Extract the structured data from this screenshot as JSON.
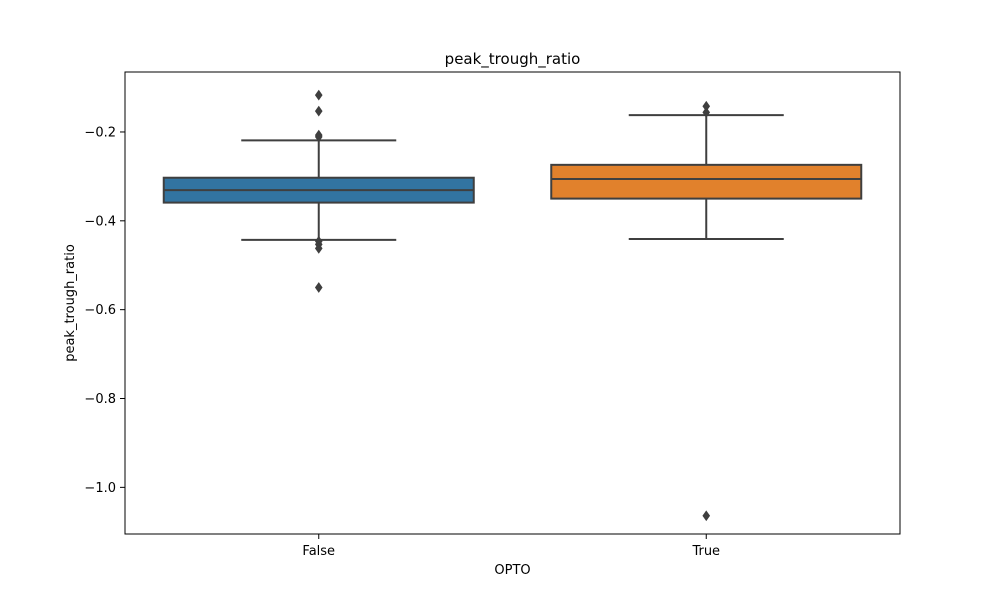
{
  "chart_data": {
    "type": "box",
    "title": "peak_trough_ratio",
    "xlabel": "OPTO",
    "ylabel": "peak_trough_ratio",
    "ylim": [
      -1.105,
      -0.065
    ],
    "yticks": [
      -0.2,
      -0.4,
      -0.6,
      -0.8,
      -1.0
    ],
    "ytick_labels": [
      "−0.2",
      "−0.4",
      "−0.6",
      "−0.8",
      "−1.0"
    ],
    "grid": false,
    "legend": "none",
    "categories": [
      "False",
      "True"
    ],
    "boxes": [
      {
        "category": "False",
        "color": "#3274a1",
        "whisker_low": -0.443,
        "q1": -0.359,
        "median": -0.331,
        "q3": -0.303,
        "whisker_high": -0.219,
        "outliers": [
          -0.117,
          -0.153,
          -0.207,
          -0.211,
          -0.446,
          -0.453,
          -0.462,
          -0.55
        ]
      },
      {
        "category": "True",
        "color": "#e1812c",
        "whisker_low": -0.441,
        "q1": -0.35,
        "median": -0.306,
        "q3": -0.274,
        "whisker_high": -0.162,
        "outliers": [
          -0.142,
          -0.156,
          -1.064
        ]
      }
    ]
  }
}
